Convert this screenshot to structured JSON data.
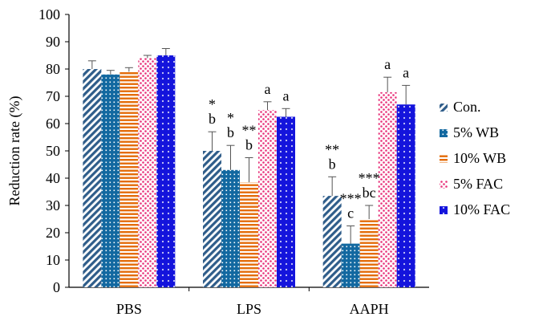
{
  "chart_data": {
    "type": "bar",
    "title": "",
    "xlabel": "",
    "ylabel": "Reduction rate (%)",
    "ylim": [
      0,
      100
    ],
    "yticks": [
      0,
      10,
      20,
      30,
      40,
      50,
      60,
      70,
      80,
      90,
      100
    ],
    "grid": false,
    "legend_position": "right",
    "categories": [
      "PBS",
      "LPS",
      "AAPH"
    ],
    "series": [
      {
        "name": "Con.",
        "pattern": "diagonal-stripes",
        "color": "#2F5D8A",
        "values": [
          80,
          50,
          33.5
        ],
        "errors": [
          3,
          7,
          7
        ],
        "stars": [
          "",
          "*",
          "**"
        ],
        "letters": [
          "",
          "b",
          "b"
        ]
      },
      {
        "name": "5% WB",
        "pattern": "squares",
        "color": "#1268A0",
        "values": [
          78,
          43,
          16
        ],
        "errors": [
          1.5,
          9,
          6.5
        ],
        "stars": [
          "",
          "*",
          "***"
        ],
        "letters": [
          "",
          "b",
          "c"
        ]
      },
      {
        "name": "10% WB",
        "pattern": "horizontal-stripes",
        "color": "#E46C0A",
        "values": [
          79,
          38.5,
          25
        ],
        "errors": [
          1.5,
          9,
          5
        ],
        "stars": [
          "",
          "**",
          "***"
        ],
        "letters": [
          "",
          "b",
          "bc"
        ]
      },
      {
        "name": "5% FAC",
        "pattern": "dots",
        "color": "#E8317A",
        "values": [
          84,
          65,
          71.5
        ],
        "errors": [
          1,
          3,
          5.5
        ],
        "stars": [
          "",
          "",
          ""
        ],
        "letters": [
          "",
          "a",
          "a"
        ]
      },
      {
        "name": "10% FAC",
        "pattern": "diamonds",
        "color": "#1414DC",
        "values": [
          85,
          62.5,
          67
        ],
        "errors": [
          2.5,
          3,
          7
        ],
        "stars": [
          "",
          "",
          ""
        ],
        "letters": [
          "",
          "a",
          "a"
        ]
      }
    ]
  }
}
